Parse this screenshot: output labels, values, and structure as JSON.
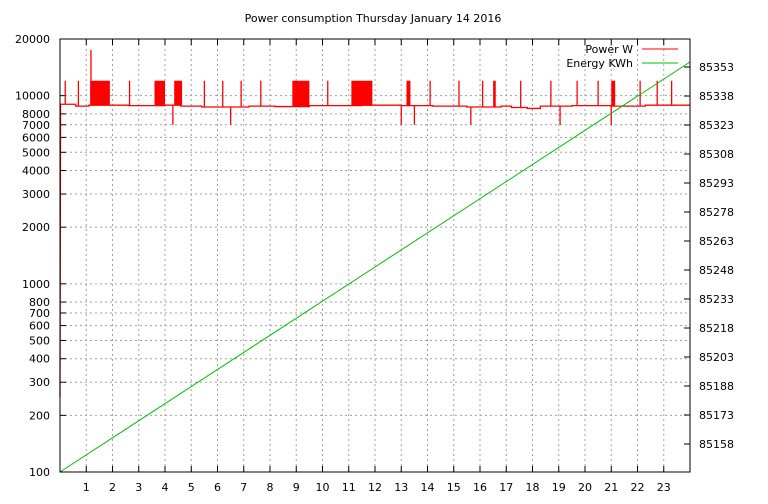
{
  "chart_data": {
    "type": "line",
    "title": "Power consumption Thursday January 14 2016",
    "xlabel": "",
    "ylabel": "",
    "xlim": [
      0,
      24
    ],
    "x_ticks": [
      1,
      2,
      3,
      4,
      5,
      6,
      7,
      8,
      9,
      10,
      11,
      12,
      13,
      14,
      15,
      16,
      17,
      18,
      19,
      20,
      21,
      22,
      23
    ],
    "y_scale": "log",
    "ylim": [
      100,
      20000
    ],
    "y_ticks": [
      100,
      200,
      300,
      400,
      500,
      600,
      700,
      800,
      1000,
      2000,
      3000,
      4000,
      5000,
      6000,
      7000,
      8000,
      10000,
      20000
    ],
    "y2lim": [
      85143.5,
      85367.5
    ],
    "y2_ticks": [
      85158,
      85173,
      85188,
      85203,
      85218,
      85233,
      85248,
      85263,
      85278,
      85293,
      85308,
      85323,
      85338,
      85353
    ],
    "grid": true,
    "legend_position": "top-right",
    "colors": {
      "power": "#ff0000",
      "energy": "#00c000",
      "grid": "#a0a0a0"
    },
    "series": [
      {
        "name": "Power W",
        "axis": "y",
        "start": [
          [
            0,
            250
          ],
          [
            0.02,
            9000
          ]
        ],
        "baseline": [
          [
            0.02,
            9000
          ],
          [
            0.6,
            8800
          ],
          [
            1.1,
            8900
          ],
          [
            2.6,
            8850
          ],
          [
            4.0,
            8900
          ],
          [
            4.6,
            8800
          ],
          [
            5.4,
            8700
          ],
          [
            7.2,
            8800
          ],
          [
            8.2,
            8750
          ],
          [
            9.5,
            8850
          ],
          [
            11.5,
            8900
          ],
          [
            13.0,
            8850
          ],
          [
            14.2,
            8800
          ],
          [
            15.5,
            8700
          ],
          [
            16.8,
            8800
          ],
          [
            17.2,
            8650
          ],
          [
            17.8,
            8550
          ],
          [
            18.3,
            8800
          ],
          [
            19.5,
            8850
          ],
          [
            21.0,
            8800
          ],
          [
            22.3,
            8900
          ],
          [
            24,
            8900
          ]
        ],
        "spikes": [
          [
            0.2,
            12000
          ],
          [
            0.7,
            12000
          ],
          [
            1.18,
            17500
          ],
          [
            2.65,
            12000
          ],
          [
            4.3,
            7000
          ],
          [
            5.5,
            12000
          ],
          [
            6.2,
            12000
          ],
          [
            6.5,
            7000
          ],
          [
            6.9,
            12000
          ],
          [
            7.65,
            12000
          ],
          [
            10.2,
            12000
          ],
          [
            11.35,
            12000
          ],
          [
            13.0,
            7000
          ],
          [
            13.5,
            7000
          ],
          [
            14.1,
            12000
          ],
          [
            15.2,
            12000
          ],
          [
            15.65,
            7000
          ],
          [
            16.1,
            12000
          ],
          [
            17.55,
            12000
          ],
          [
            18.7,
            12000
          ],
          [
            19.05,
            7000
          ],
          [
            19.7,
            12000
          ],
          [
            20.5,
            12000
          ],
          [
            21.0,
            7000
          ],
          [
            22.1,
            12000
          ],
          [
            22.75,
            12000
          ],
          [
            23.3,
            12000
          ]
        ],
        "bands": [
          [
            1.15,
            1.9,
            12000
          ],
          [
            3.6,
            4.0,
            12000
          ],
          [
            4.35,
            4.65,
            12000
          ],
          [
            8.85,
            9.5,
            12000
          ],
          [
            11.1,
            11.9,
            12000
          ],
          [
            13.2,
            13.35,
            12000
          ],
          [
            16.5,
            16.6,
            12000
          ],
          [
            21.0,
            21.15,
            12000
          ]
        ]
      },
      {
        "name": "Energy KWh",
        "axis": "y2",
        "points": [
          [
            0,
            85143.5
          ],
          [
            24,
            85355.6
          ]
        ]
      }
    ]
  }
}
